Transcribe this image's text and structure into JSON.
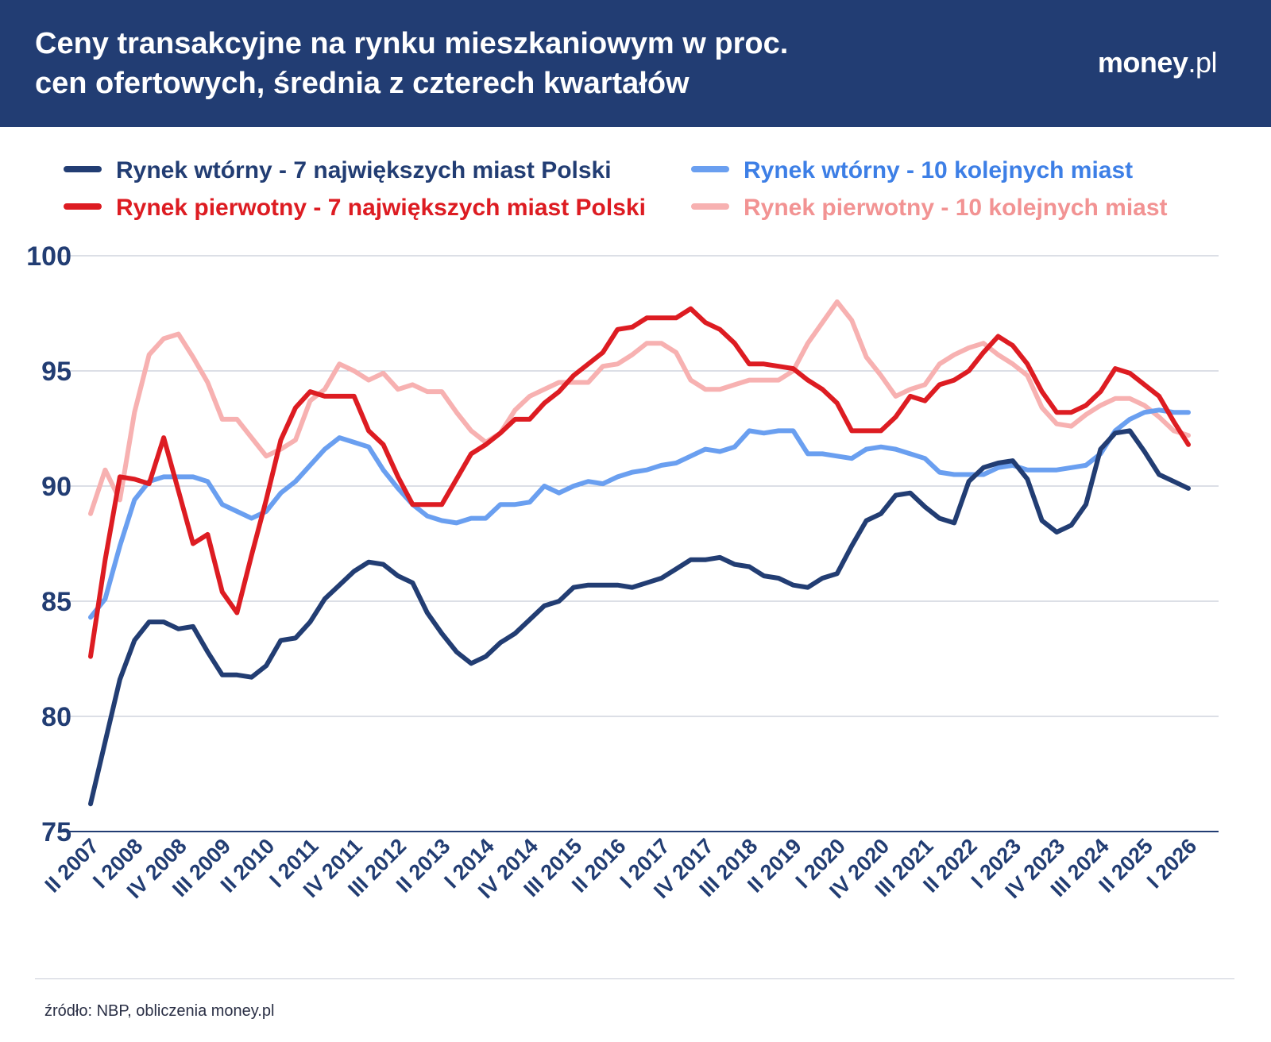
{
  "header": {
    "title_line1": "Ceny transakcyjne na rynku mieszkaniowym w proc.",
    "title_line2": "cen ofertowych, średnia z czterech kwartałów",
    "logo_part1": "money",
    "logo_part2": ".pl"
  },
  "footer": {
    "source": "źródło: NBP, obliczenia money.pl"
  },
  "colors": {
    "header_bg": "#223d73",
    "secondary_7": "#223d73",
    "secondary_10": "#6a9ff0",
    "primary_7": "#dd1c22",
    "primary_10": "#f7b1b1",
    "grid": "#b9bfcc",
    "axis": "#223d73"
  },
  "chart_data": {
    "type": "line",
    "title": "Ceny transakcyjne na rynku mieszkaniowym w proc. cen ofertowych, średnia z czterech kwartałów",
    "xlabel": "",
    "ylabel": "",
    "ylim": [
      75,
      100
    ],
    "yticks": [
      75,
      80,
      85,
      90,
      95,
      100
    ],
    "grid": true,
    "legend_position": "top",
    "x": [
      "II 2007",
      "III 2007",
      "IV 2007",
      "I 2008",
      "II 2008",
      "III 2008",
      "IV 2008",
      "I 2009",
      "II 2009",
      "III 2009",
      "IV 2009",
      "I 2010",
      "II 2010",
      "III 2010",
      "IV 2010",
      "I 2011",
      "II 2011",
      "III 2011",
      "IV 2011",
      "I 2012",
      "II 2012",
      "III 2012",
      "IV 2012",
      "I 2013",
      "II 2013",
      "III 2013",
      "IV 2013",
      "I 2014",
      "II 2014",
      "III 2014",
      "IV 2014",
      "I 2015",
      "II 2015",
      "III 2015",
      "IV 2015",
      "I 2016",
      "II 2016",
      "III 2016",
      "IV 2016",
      "I 2017",
      "II 2017",
      "III 2017",
      "IV 2017",
      "I 2018",
      "II 2018",
      "III 2018",
      "IV 2018",
      "I 2019",
      "II 2019",
      "III 2019",
      "IV 2019",
      "I 2020",
      "II 2020",
      "III 2020",
      "IV 2020",
      "I 2021",
      "II 2021",
      "III 2021",
      "IV 2021",
      "I 2022",
      "II 2022",
      "III 2022",
      "IV 2022",
      "I 2023",
      "II 2023",
      "III 2023",
      "IV 2023",
      "I 2024",
      "II 2024",
      "III 2024",
      "IV 2024",
      "I 2025",
      "II 2025",
      "III 2025",
      "IV 2025",
      "I 2026"
    ],
    "xtick_labels": [
      "II 2007",
      "I 2008",
      "IV 2008",
      "III 2009",
      "II 2010",
      "I 2011",
      "IV 2011",
      "III 2012",
      "II 2013",
      "I 2014",
      "IV 2014",
      "III 2015",
      "II 2016",
      "I 2017",
      "IV 2017",
      "III 2018",
      "II 2019",
      "I 2020",
      "IV 2020",
      "III 2021",
      "II 2022",
      "I 2023",
      "IV 2023",
      "III 2024",
      "II 2025",
      "I 2026"
    ],
    "series": [
      {
        "name": "Rynek wtórny - 7 największych miast Polski",
        "color": "#223d73",
        "values": [
          76.2,
          78.9,
          81.6,
          83.3,
          84.1,
          84.1,
          83.8,
          83.9,
          82.8,
          81.8,
          81.8,
          81.7,
          82.2,
          83.3,
          83.4,
          84.1,
          85.1,
          85.7,
          86.3,
          86.7,
          86.6,
          86.1,
          85.8,
          84.5,
          83.6,
          82.8,
          82.3,
          82.6,
          83.2,
          83.6,
          84.2,
          84.8,
          85.0,
          85.6,
          85.7,
          85.7,
          85.7,
          85.6,
          85.8,
          86.0,
          86.4,
          86.8,
          86.8,
          86.9,
          86.6,
          86.5,
          86.1,
          86.0,
          85.7,
          85.6,
          86.0,
          86.2,
          87.4,
          88.5,
          88.8,
          89.6,
          89.7,
          89.1,
          88.6,
          88.4,
          90.2,
          90.8,
          91.0,
          91.1,
          90.3,
          88.5,
          88.0,
          88.3,
          89.2,
          91.6,
          92.3,
          92.4,
          91.5,
          90.5,
          90.2,
          89.9
        ]
      },
      {
        "name": "Rynek wtórny - 10 kolejnych miast",
        "color": "#6a9ff0",
        "values": [
          84.3,
          85.1,
          87.4,
          89.4,
          90.2,
          90.4,
          90.4,
          90.4,
          90.2,
          89.2,
          88.9,
          88.6,
          88.9,
          89.7,
          90.2,
          90.9,
          91.6,
          92.1,
          91.9,
          91.7,
          90.7,
          89.9,
          89.2,
          88.7,
          88.5,
          88.4,
          88.6,
          88.6,
          89.2,
          89.2,
          89.3,
          90.0,
          89.7,
          90.0,
          90.2,
          90.1,
          90.4,
          90.6,
          90.7,
          90.9,
          91.0,
          91.3,
          91.6,
          91.5,
          91.7,
          92.4,
          92.3,
          92.4,
          92.4,
          91.4,
          91.4,
          91.3,
          91.2,
          91.6,
          91.7,
          91.6,
          91.4,
          91.2,
          90.6,
          90.5,
          90.5,
          90.5,
          90.8,
          90.9,
          90.7,
          90.7,
          90.7,
          90.8,
          90.9,
          91.4,
          92.4,
          92.9,
          93.2,
          93.3,
          93.2,
          93.2
        ]
      },
      {
        "name": "Rynek pierwotny - 7 największych miast Polski",
        "color": "#dd1c22",
        "values": [
          82.6,
          86.8,
          90.4,
          90.3,
          90.1,
          92.1,
          89.8,
          87.5,
          87.9,
          85.4,
          84.5,
          87.0,
          89.4,
          92.0,
          93.4,
          94.1,
          93.9,
          93.9,
          93.9,
          92.4,
          91.8,
          90.4,
          89.2,
          89.2,
          89.2,
          90.3,
          91.4,
          91.8,
          92.3,
          92.9,
          92.9,
          93.6,
          94.1,
          94.8,
          95.3,
          95.8,
          96.8,
          96.9,
          97.3,
          97.3,
          97.3,
          97.7,
          97.1,
          96.8,
          96.2,
          95.3,
          95.3,
          95.2,
          95.1,
          94.6,
          94.2,
          93.6,
          92.4,
          92.4,
          92.4,
          93.0,
          93.9,
          93.7,
          94.4,
          94.6,
          95.0,
          95.8,
          96.5,
          96.1,
          95.3,
          94.1,
          93.2,
          93.2,
          93.5,
          94.1,
          95.1,
          94.9,
          94.4,
          93.9,
          92.8,
          91.8
        ]
      },
      {
        "name": "Rynek pierwotny - 10 kolejnych miast",
        "color": "#f7b1b1",
        "values": [
          88.8,
          90.7,
          89.4,
          93.2,
          95.7,
          96.4,
          96.6,
          95.6,
          94.5,
          92.9,
          92.9,
          92.1,
          91.3,
          91.6,
          92.0,
          93.7,
          94.2,
          95.3,
          95.0,
          94.6,
          94.9,
          94.2,
          94.4,
          94.1,
          94.1,
          93.2,
          92.4,
          91.9,
          92.3,
          93.3,
          93.9,
          94.2,
          94.5,
          94.5,
          94.5,
          95.2,
          95.3,
          95.7,
          96.2,
          96.2,
          95.8,
          94.6,
          94.2,
          94.2,
          94.4,
          94.6,
          94.6,
          94.6,
          95.0,
          96.2,
          97.1,
          98.0,
          97.2,
          95.6,
          94.8,
          93.9,
          94.2,
          94.4,
          95.3,
          95.7,
          96.0,
          96.2,
          95.7,
          95.3,
          94.8,
          93.4,
          92.7,
          92.6,
          93.1,
          93.5,
          93.8,
          93.8,
          93.5,
          93.0,
          92.4,
          92.2
        ]
      }
    ]
  }
}
